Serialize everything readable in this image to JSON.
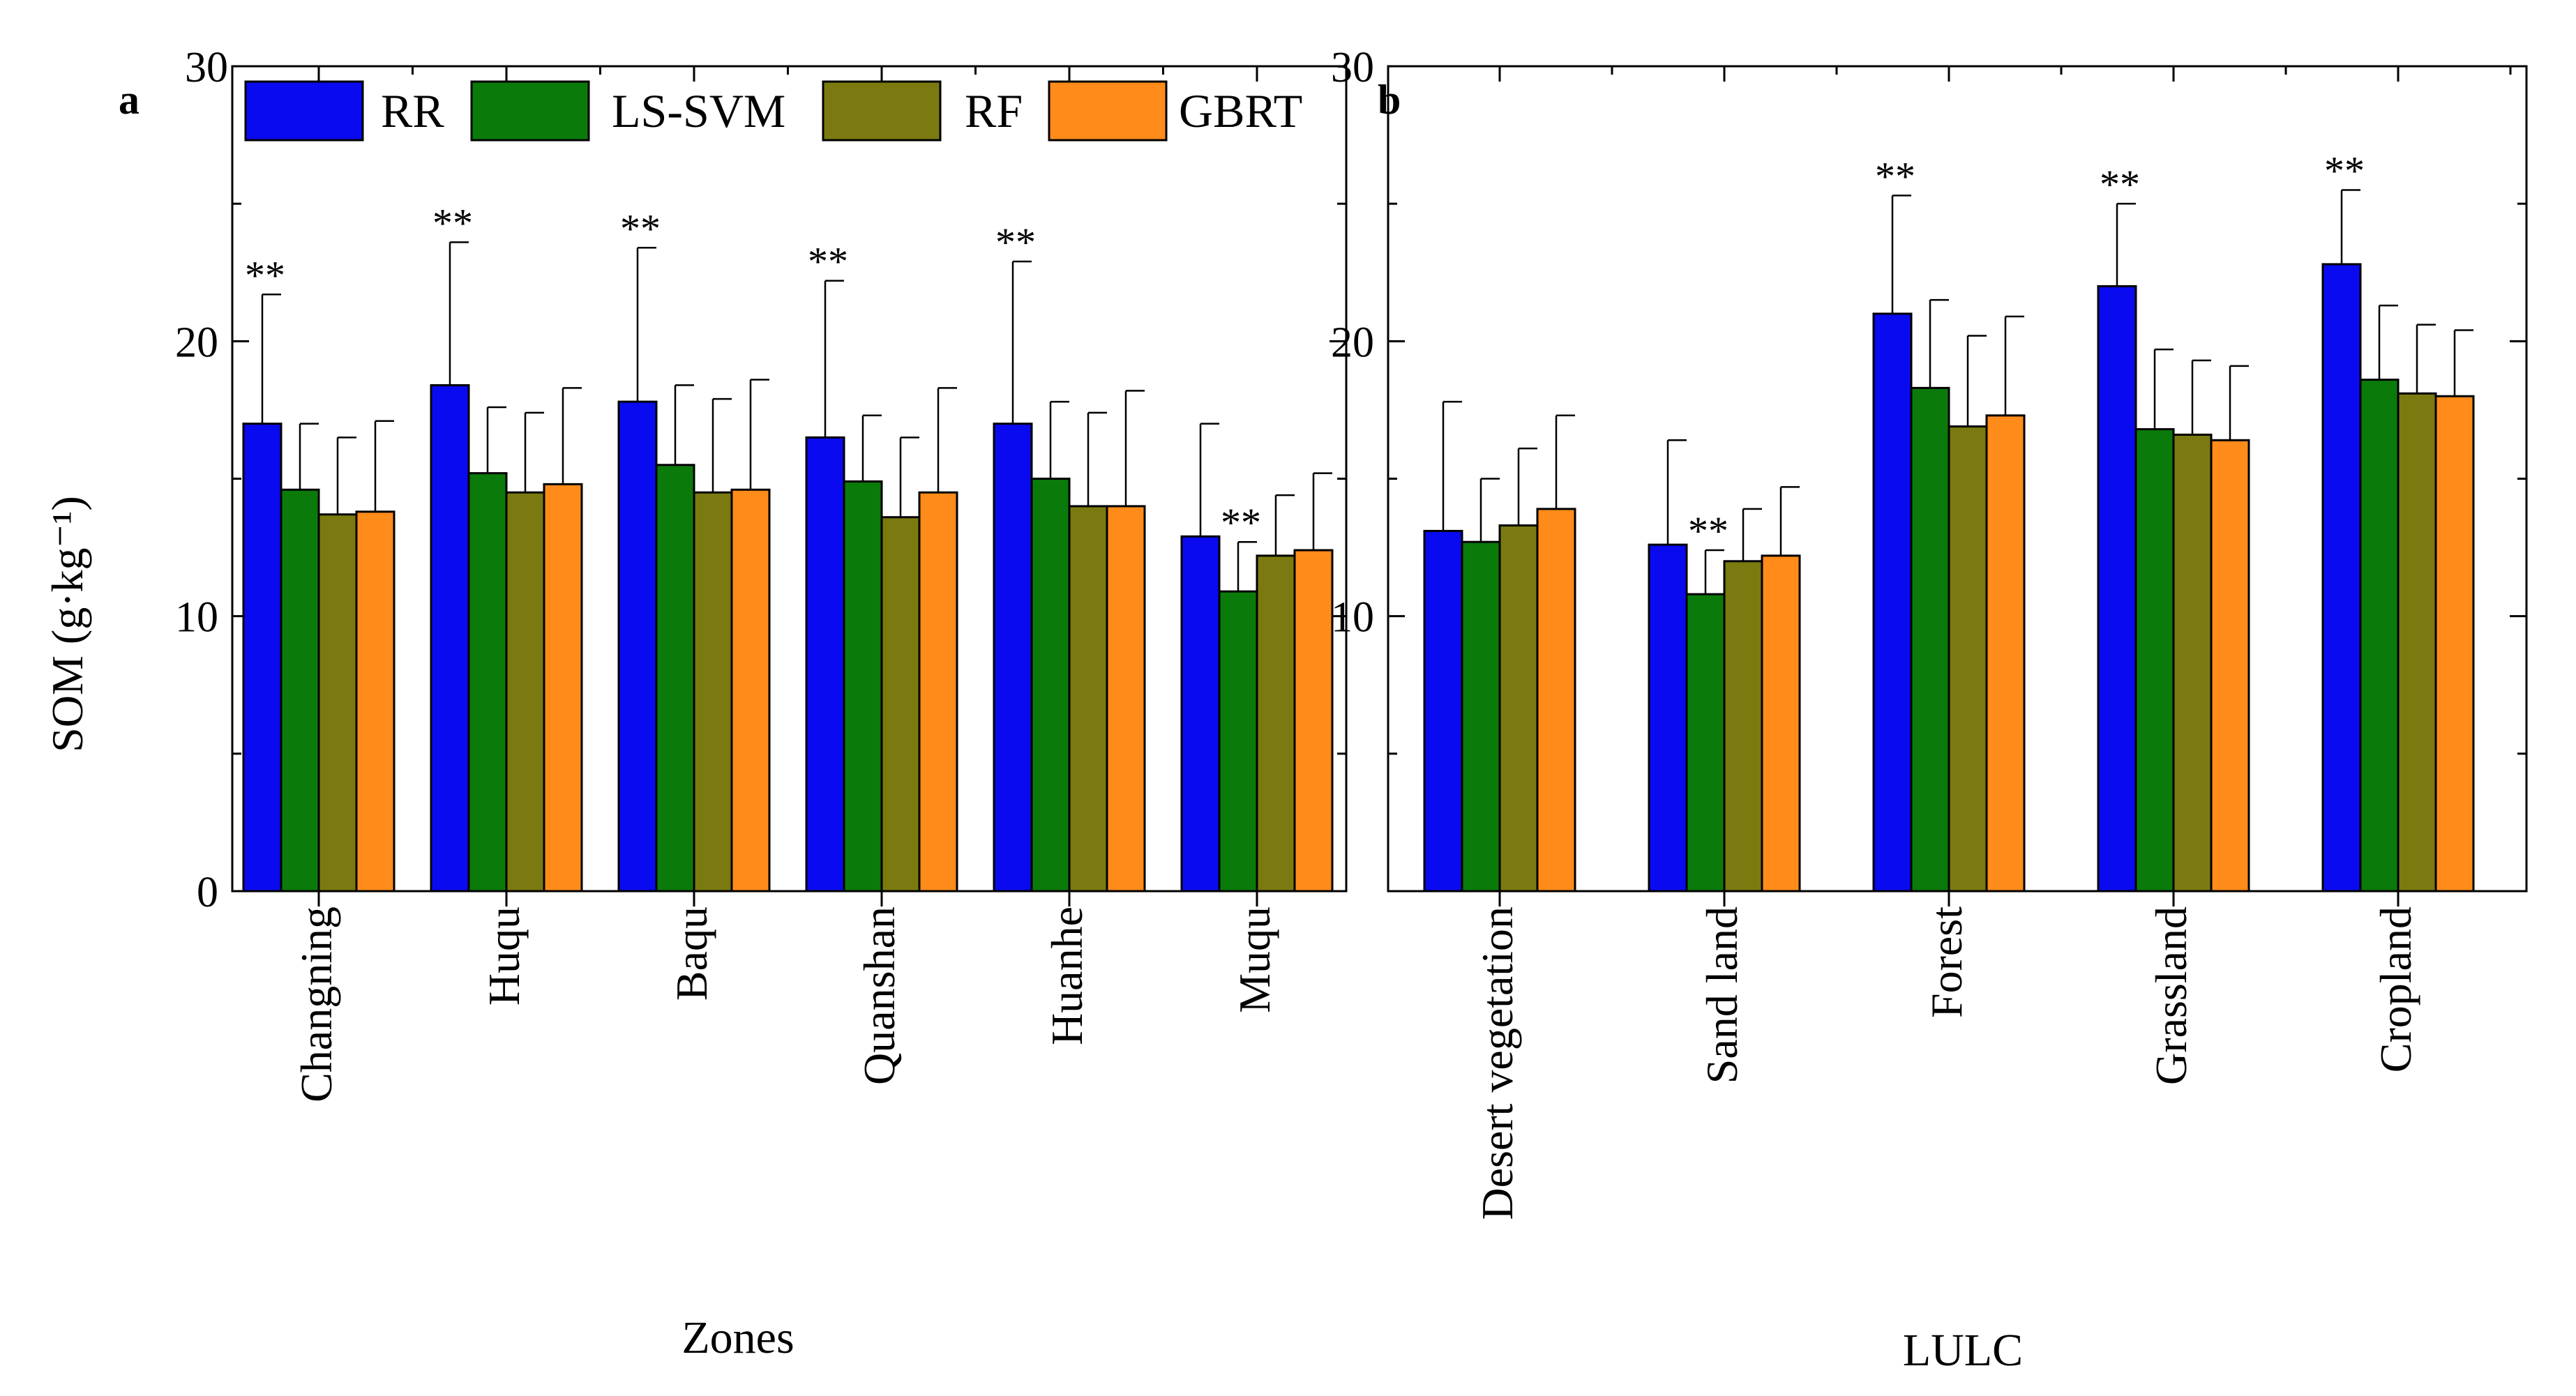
{
  "y_axis_label": "SOM (g·kg⁻¹)",
  "legend": [
    {
      "name": "RR",
      "color": "#0a0af0"
    },
    {
      "name": "LS-SVM",
      "color": "#0a7a0a"
    },
    {
      "name": "RF",
      "color": "#7a7a10"
    },
    {
      "name": "GBRT",
      "color": "#ff8c1a"
    }
  ],
  "significance_marker": "**",
  "chart_data": [
    {
      "type": "bar",
      "panel_label": "a",
      "xlabel": "Zones",
      "ylabel": "SOM (g·kg⁻¹)",
      "ylim": [
        0,
        30
      ],
      "yticks": [
        0,
        10,
        20,
        30
      ],
      "categories": [
        "Changning",
        "Huqu",
        "Baqu",
        "Quanshan",
        "Huanhe",
        "Muqu"
      ],
      "series": [
        {
          "name": "RR",
          "values": [
            17.0,
            18.4,
            17.8,
            16.5,
            17.0,
            12.9
          ],
          "errors": [
            4.7,
            5.2,
            5.6,
            5.7,
            5.9,
            4.1
          ],
          "significant": [
            true,
            true,
            true,
            true,
            true,
            false
          ]
        },
        {
          "name": "LS-SVM",
          "values": [
            14.6,
            15.2,
            15.5,
            14.9,
            15.0,
            10.9
          ],
          "errors": [
            2.4,
            2.4,
            2.9,
            2.4,
            2.8,
            1.8
          ],
          "significant": [
            false,
            false,
            false,
            false,
            false,
            true
          ]
        },
        {
          "name": "RF",
          "values": [
            13.7,
            14.5,
            14.5,
            13.6,
            14.0,
            12.2
          ],
          "errors": [
            2.8,
            2.9,
            3.4,
            2.9,
            3.4,
            2.2
          ],
          "significant": [
            false,
            false,
            false,
            false,
            false,
            false
          ]
        },
        {
          "name": "GBRT",
          "values": [
            13.8,
            14.8,
            14.6,
            14.5,
            14.0,
            12.4
          ],
          "errors": [
            3.3,
            3.5,
            4.0,
            3.8,
            4.2,
            2.8
          ],
          "significant": [
            false,
            false,
            false,
            false,
            false,
            false
          ]
        }
      ]
    },
    {
      "type": "bar",
      "panel_label": "b",
      "xlabel": "LULC",
      "ylabel": "",
      "ylim": [
        0,
        30
      ],
      "yticks": [
        10,
        20,
        30
      ],
      "categories": [
        "Desert vegetation",
        "Sand land",
        "Forest",
        "Grassland",
        "Cropland"
      ],
      "series": [
        {
          "name": "RR",
          "values": [
            13.1,
            12.6,
            21.0,
            22.0,
            22.8
          ],
          "errors": [
            4.7,
            3.8,
            4.3,
            3.0,
            2.7
          ],
          "significant": [
            false,
            false,
            true,
            true,
            true
          ]
        },
        {
          "name": "LS-SVM",
          "values": [
            12.7,
            10.8,
            18.3,
            16.8,
            18.6
          ],
          "errors": [
            2.3,
            1.6,
            3.2,
            2.9,
            2.7
          ],
          "significant": [
            false,
            true,
            false,
            false,
            false
          ]
        },
        {
          "name": "RF",
          "values": [
            13.3,
            12.0,
            16.9,
            16.6,
            18.1
          ],
          "errors": [
            2.8,
            1.9,
            3.3,
            2.7,
            2.5
          ],
          "significant": [
            false,
            false,
            false,
            false,
            false
          ]
        },
        {
          "name": "GBRT",
          "values": [
            13.9,
            12.2,
            17.3,
            16.4,
            18.0
          ],
          "errors": [
            3.4,
            2.5,
            3.6,
            2.7,
            2.4
          ],
          "significant": [
            false,
            false,
            false,
            false,
            false
          ]
        }
      ]
    }
  ]
}
